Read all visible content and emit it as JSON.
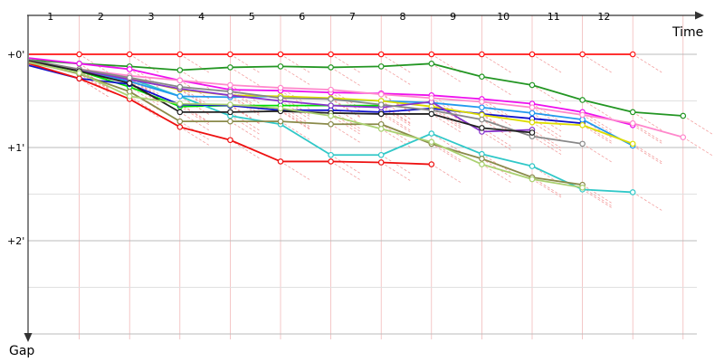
{
  "chart_data": {
    "type": "line",
    "x_axis_title": "Time",
    "y_axis_title": "Gap",
    "lap_labels": [
      "1",
      "2",
      "3",
      "4",
      "5",
      "6",
      "7",
      "8",
      "9",
      "10",
      "11",
      "12"
    ],
    "gap_labels": [
      "+0'",
      "+1'",
      "+2'"
    ],
    "xlim": [
      0,
      13.45
    ],
    "ylim": [
      0,
      3
    ],
    "grid": true,
    "colors": {
      "axis": "#333333",
      "grid_major": "#bbbbbb",
      "grid_minor": "#e0e0e0",
      "vertical_grid": "#f0b0b0",
      "connector": "#f3a0a0"
    },
    "series": [
      {
        "color": "#ff1414",
        "points": [
          [
            0,
            0
          ],
          [
            1,
            0
          ],
          [
            2,
            0
          ],
          [
            3,
            0
          ],
          [
            4,
            0
          ],
          [
            5,
            0
          ],
          [
            6,
            0
          ],
          [
            7,
            0
          ],
          [
            8,
            0
          ],
          [
            9,
            0
          ],
          [
            10,
            0
          ],
          [
            11,
            0
          ],
          [
            12,
            0
          ]
        ]
      },
      {
        "color": "#239623",
        "points": [
          [
            0,
            0.06
          ],
          [
            1,
            0.1
          ],
          [
            2,
            0.13
          ],
          [
            3,
            0.17
          ],
          [
            4,
            0.14
          ],
          [
            5,
            0.13
          ],
          [
            6,
            0.14
          ],
          [
            7,
            0.13
          ],
          [
            8,
            0.1
          ],
          [
            9,
            0.24
          ],
          [
            10,
            0.33
          ],
          [
            11,
            0.49
          ],
          [
            12,
            0.62
          ],
          [
            13,
            0.66
          ]
        ]
      },
      {
        "color": "#ee11ee",
        "points": [
          [
            0,
            0.04
          ],
          [
            1,
            0.1
          ],
          [
            2,
            0.16
          ],
          [
            3,
            0.28
          ],
          [
            4,
            0.38
          ],
          [
            5,
            0.39
          ],
          [
            6,
            0.41
          ],
          [
            7,
            0.42
          ],
          [
            8,
            0.44
          ],
          [
            9,
            0.48
          ],
          [
            10,
            0.53
          ],
          [
            11,
            0.62
          ],
          [
            12,
            0.76
          ]
        ]
      },
      {
        "color": "#00dd00",
        "points": [
          [
            0,
            0.08
          ],
          [
            1,
            0.18
          ],
          [
            2,
            0.35
          ],
          [
            3,
            0.56
          ],
          [
            4,
            0.55
          ],
          [
            5,
            0.55
          ],
          [
            6,
            0.55
          ],
          [
            7,
            0.55
          ]
        ]
      },
      {
        "color": "#30c8c8",
        "points": [
          [
            0,
            0.1
          ],
          [
            1,
            0.16
          ],
          [
            2,
            0.26
          ],
          [
            3,
            0.45
          ],
          [
            4,
            0.66
          ],
          [
            5,
            0.75
          ],
          [
            6,
            1.08
          ],
          [
            7,
            1.08
          ],
          [
            8,
            0.85
          ],
          [
            9,
            1.07
          ],
          [
            10,
            1.2
          ],
          [
            11,
            1.45
          ],
          [
            12,
            1.48
          ]
        ]
      },
      {
        "color": "#1111cc",
        "points": [
          [
            0,
            0.12
          ],
          [
            1,
            0.26
          ],
          [
            2,
            0.32
          ],
          [
            3,
            0.54
          ],
          [
            4,
            0.55
          ],
          [
            5,
            0.6
          ],
          [
            6,
            0.6
          ],
          [
            7,
            0.62
          ],
          [
            8,
            0.58
          ],
          [
            9,
            0.64
          ],
          [
            10,
            0.69
          ],
          [
            11,
            0.74
          ]
        ]
      },
      {
        "color": "#2299ee",
        "points": [
          [
            0,
            0.06
          ],
          [
            1,
            0.17
          ],
          [
            2,
            0.29
          ],
          [
            3,
            0.45
          ],
          [
            4,
            0.46
          ],
          [
            5,
            0.45
          ],
          [
            6,
            0.48
          ],
          [
            7,
            0.5
          ],
          [
            8,
            0.52
          ],
          [
            9,
            0.57
          ],
          [
            10,
            0.63
          ],
          [
            11,
            0.7
          ],
          [
            12,
            0.98
          ]
        ]
      },
      {
        "color": "#dddd00",
        "points": [
          [
            0,
            0.07
          ],
          [
            1,
            0.16
          ],
          [
            2,
            0.26
          ],
          [
            3,
            0.38
          ],
          [
            4,
            0.44
          ],
          [
            5,
            0.45
          ],
          [
            6,
            0.47
          ],
          [
            7,
            0.5
          ],
          [
            8,
            0.56
          ],
          [
            9,
            0.65
          ],
          [
            10,
            0.73
          ],
          [
            11,
            0.76
          ],
          [
            12,
            0.96
          ]
        ]
      },
      {
        "color": "#8833cc",
        "points": [
          [
            0,
            0.08
          ],
          [
            1,
            0.17
          ],
          [
            2,
            0.27
          ],
          [
            3,
            0.37
          ],
          [
            4,
            0.44
          ],
          [
            5,
            0.5
          ],
          [
            6,
            0.55
          ],
          [
            7,
            0.57
          ],
          [
            8,
            0.51
          ],
          [
            9,
            0.83
          ],
          [
            10,
            0.81
          ]
        ]
      },
      {
        "color": "#ff88cc",
        "points": [
          [
            0,
            0.07
          ],
          [
            1,
            0.16
          ],
          [
            2,
            0.23
          ],
          [
            3,
            0.28
          ],
          [
            4,
            0.33
          ],
          [
            5,
            0.36
          ],
          [
            6,
            0.38
          ],
          [
            7,
            0.43
          ],
          [
            8,
            0.47
          ],
          [
            9,
            0.51
          ],
          [
            10,
            0.57
          ],
          [
            11,
            0.65
          ],
          [
            12,
            0.74
          ],
          [
            13,
            0.89
          ]
        ]
      },
      {
        "color": "#888888",
        "points": [
          [
            0,
            0.06
          ],
          [
            1,
            0.16
          ],
          [
            2,
            0.25
          ],
          [
            3,
            0.35
          ],
          [
            4,
            0.4
          ],
          [
            5,
            0.47
          ],
          [
            6,
            0.48
          ],
          [
            7,
            0.54
          ],
          [
            8,
            0.6
          ],
          [
            9,
            0.7
          ],
          [
            10,
            0.88
          ],
          [
            11,
            0.96
          ]
        ]
      },
      {
        "color": "#222222",
        "points": [
          [
            0,
            0.07
          ],
          [
            1,
            0.18
          ],
          [
            2,
            0.31
          ],
          [
            3,
            0.62
          ],
          [
            4,
            0.62
          ],
          [
            5,
            0.61
          ],
          [
            6,
            0.63
          ],
          [
            7,
            0.64
          ],
          [
            8,
            0.64
          ],
          [
            9,
            0.79
          ],
          [
            10,
            0.84
          ]
        ]
      },
      {
        "color": "#8a8a4a",
        "points": [
          [
            0,
            0.08
          ],
          [
            1,
            0.21
          ],
          [
            2,
            0.4
          ],
          [
            3,
            0.72
          ],
          [
            4,
            0.72
          ],
          [
            5,
            0.72
          ],
          [
            6,
            0.75
          ],
          [
            7,
            0.75
          ],
          [
            8,
            0.96
          ],
          [
            9,
            1.12
          ],
          [
            10,
            1.32
          ],
          [
            11,
            1.4
          ]
        ]
      },
      {
        "color": "#ee1111",
        "points": [
          [
            0,
            0.1
          ],
          [
            1,
            0.26
          ],
          [
            2,
            0.48
          ],
          [
            3,
            0.78
          ],
          [
            4,
            0.92
          ],
          [
            5,
            1.15
          ],
          [
            6,
            1.15
          ],
          [
            7,
            1.16
          ],
          [
            8,
            1.18
          ]
        ]
      },
      {
        "color": "#aad070",
        "points": [
          [
            0,
            0.09
          ],
          [
            1,
            0.2
          ],
          [
            2,
            0.45
          ],
          [
            3,
            0.53
          ],
          [
            4,
            0.54
          ],
          [
            5,
            0.58
          ],
          [
            6,
            0.66
          ],
          [
            7,
            0.8
          ],
          [
            8,
            0.94
          ],
          [
            9,
            1.18
          ],
          [
            10,
            1.34
          ],
          [
            11,
            1.43
          ]
        ]
      }
    ]
  }
}
